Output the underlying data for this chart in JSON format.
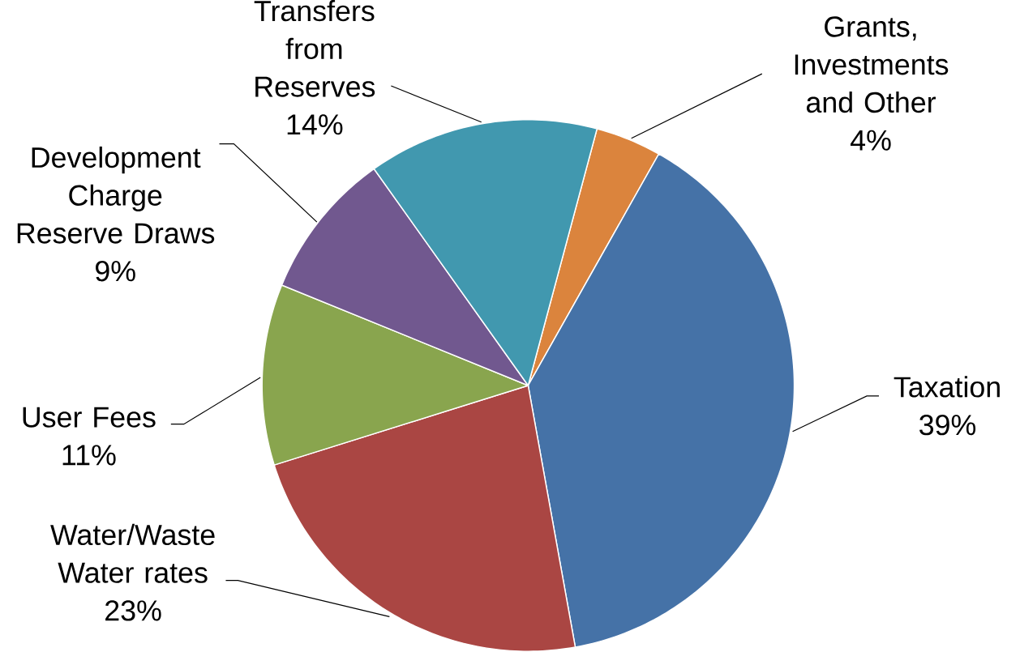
{
  "chart_data": {
    "type": "pie",
    "categories": [
      "Grants, Investments and Other",
      "Taxation",
      "Water/Waste Water rates",
      "User Fees",
      "Development Charge Reserve Draws",
      "Transfers from Reserves"
    ],
    "values": [
      4,
      39,
      23,
      11,
      9,
      14
    ],
    "value_labels": [
      "4%",
      "39%",
      "23%",
      "11%",
      "9%",
      "14%"
    ],
    "colors": [
      "#db843d",
      "#4572a7",
      "#aa4643",
      "#89a54e",
      "#71588f",
      "#4198af"
    ]
  }
}
